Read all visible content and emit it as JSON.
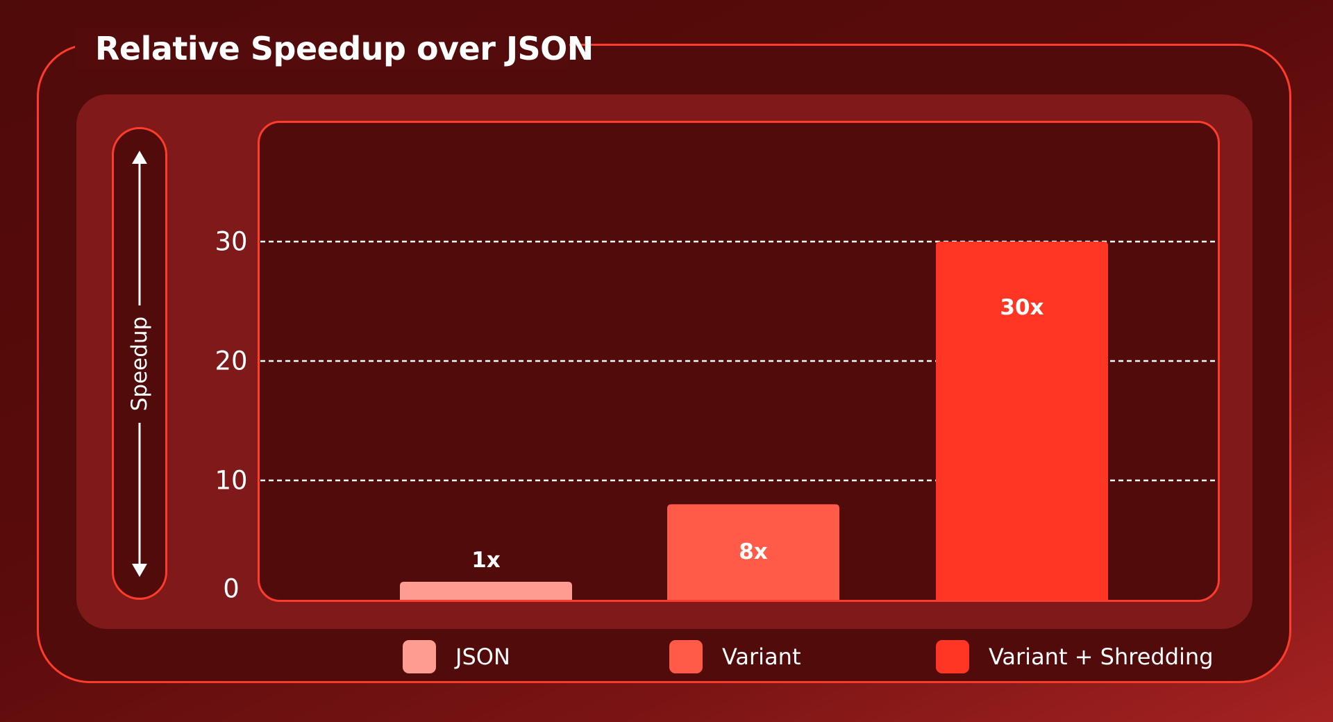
{
  "title": "Relative Speedup over JSON",
  "chart_data": {
    "type": "bar",
    "title": "Relative Speedup over JSON",
    "ylabel": "Speedup",
    "xlabel": "",
    "categories": [
      "JSON",
      "Variant",
      "Variant + Shredding"
    ],
    "values": [
      1,
      8,
      30
    ],
    "data_labels": [
      "1x",
      "8x",
      "30x"
    ],
    "yticks": [
      0,
      10,
      20,
      30
    ],
    "ylim": [
      0,
      30
    ],
    "grid": true,
    "legend_position": "bottom",
    "colors": [
      "#ff9c92",
      "#ff5b48",
      "#ff3624"
    ]
  },
  "legend": [
    {
      "label": "JSON",
      "color": "#ff9c92"
    },
    {
      "label": "Variant",
      "color": "#ff5b48"
    },
    {
      "label": "Variant + Shredding",
      "color": "#ff3624"
    }
  ],
  "colors": {
    "accent": "#ff3b2a",
    "frame_bg": "#520b0b",
    "panel_bg": "#801a1a",
    "text": "#ffffff"
  }
}
